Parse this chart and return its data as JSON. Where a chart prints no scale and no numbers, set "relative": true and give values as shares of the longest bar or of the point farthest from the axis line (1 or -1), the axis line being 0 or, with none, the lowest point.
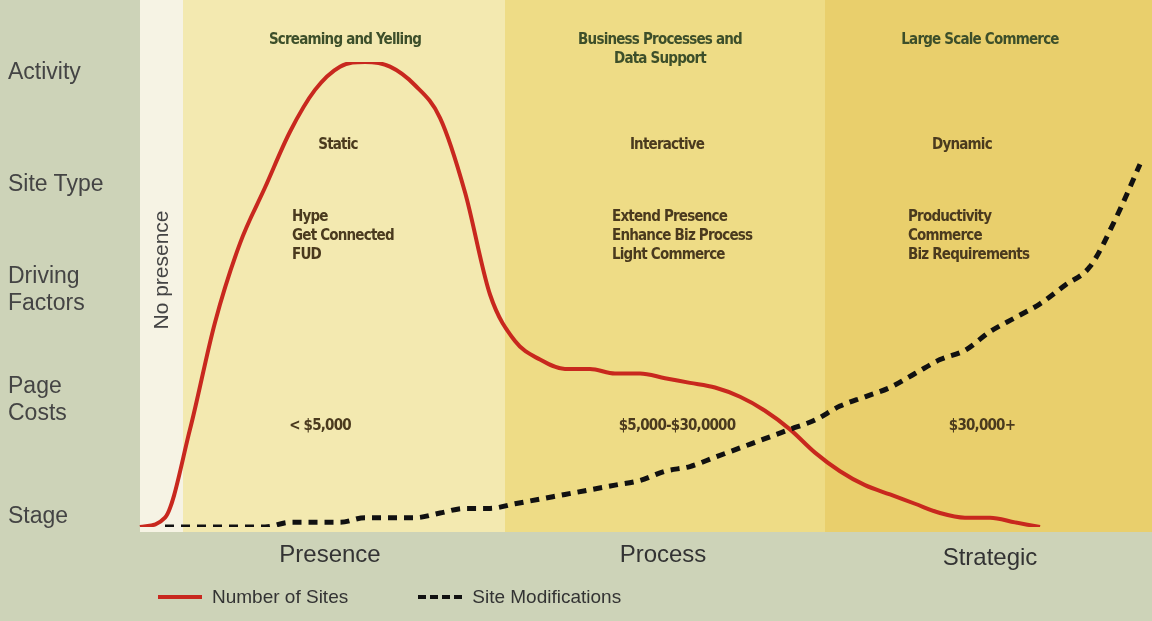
{
  "chart_data": {
    "type": "line",
    "relative": true,
    "legend": "bottom left",
    "marker": "none",
    "categories": [
      null,
      null,
      null,
      null,
      null,
      null,
      null,
      null,
      null,
      null,
      null,
      null,
      null,
      null,
      null,
      null,
      null,
      null,
      null,
      null,
      null,
      null,
      null,
      null,
      null,
      null,
      null,
      null,
      null,
      null,
      null,
      null,
      null,
      null,
      null,
      null,
      null,
      null,
      null,
      null,
      null
    ],
    "series": [
      {
        "name": "Number of Sites",
        "color": "#c8281e",
        "line_style": "solid",
        "values": [
          0,
          0.02,
          0.21,
          0.44,
          0.61,
          0.73,
          0.85,
          0.94,
          0.99,
          1,
          0.99,
          0.95,
          0.88,
          0.72,
          0.5,
          0.4,
          0.36,
          0.34,
          0.34,
          0.33,
          0.33,
          0.32,
          0.31,
          0.3,
          0.28,
          0.25,
          0.21,
          0.16,
          0.12,
          0.09,
          0.07,
          0.05,
          0.03,
          0.02,
          0.02,
          0.01,
          0,
          null,
          null,
          null,
          null
        ]
      },
      {
        "name": "Site Modifications",
        "color": "#111111",
        "line_style": "dashed",
        "values": [
          null,
          0,
          0,
          0,
          0,
          0,
          0.01,
          0.01,
          0.01,
          0.02,
          0.02,
          0.02,
          0.03,
          0.04,
          0.04,
          0.05,
          0.06,
          0.07,
          0.08,
          0.09,
          0.1,
          0.12,
          0.13,
          0.15,
          0.17,
          0.19,
          0.21,
          0.23,
          0.26,
          0.28,
          0.3,
          0.33,
          0.36,
          0.38,
          0.42,
          0.45,
          0.48,
          0.52,
          0.56,
          0.66,
          0.78
        ]
      }
    ],
    "annotations": [
      "Activity",
      "Site Type",
      "Driving\nFactors",
      "Page\nCosts",
      "Stage",
      "No presence",
      "Screaming and Yelling",
      "Business Processes and\nData Support",
      "Large Scale Commerce",
      "Static",
      "Interactive",
      "Dynamic",
      "Hype\nGet Connected\nFUD",
      "Extend Presence\nEnhance Biz Process\nLight Commerce",
      "Productivity\nCommerce\nBiz Requirements",
      "< $5,000",
      "$5,000-$30,0000",
      "$30,000+",
      "Presence",
      "Process",
      "Strategic"
    ]
  }
}
